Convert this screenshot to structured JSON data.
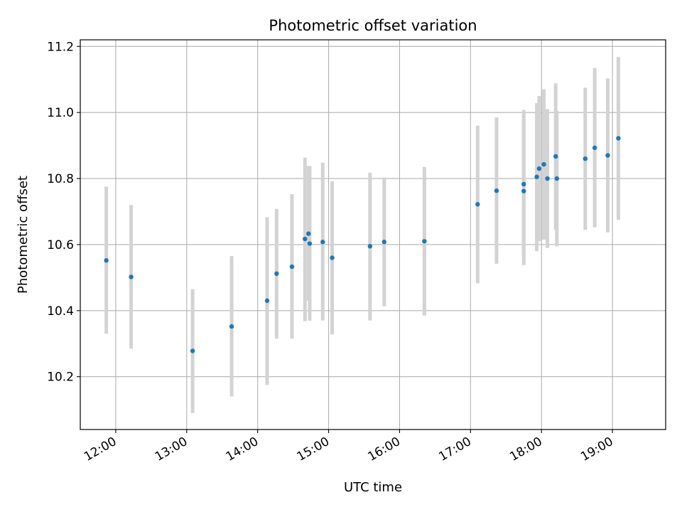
{
  "chart_data": {
    "type": "scatter",
    "title": "Photometric offset variation",
    "xlabel": "UTC time",
    "ylabel": "Photometric offset",
    "x_unit": "time of day (HH:MM, UTC)",
    "xlim": [
      "11:30",
      "19:45"
    ],
    "ylim": [
      10.04,
      11.22
    ],
    "x_ticks": [
      "12:00",
      "13:00",
      "14:00",
      "15:00",
      "16:00",
      "17:00",
      "18:00",
      "19:00"
    ],
    "y_ticks": [
      10.2,
      10.4,
      10.6,
      10.8,
      11.0,
      11.2
    ],
    "y_tick_labels": [
      "10.2",
      "10.4",
      "10.6",
      "10.8",
      "11.0",
      "11.2"
    ],
    "grid": true,
    "colors": {
      "point": "#1f77b4",
      "errorbar": "#d3d3d3",
      "grid": "#b0b0b0"
    },
    "points": [
      {
        "t": "11:52",
        "y": 10.552,
        "lo": 10.33,
        "hi": 10.775
      },
      {
        "t": "12:13",
        "y": 10.502,
        "lo": 10.285,
        "hi": 10.72
      },
      {
        "t": "13:05",
        "y": 10.278,
        "lo": 10.09,
        "hi": 10.465
      },
      {
        "t": "13:38",
        "y": 10.352,
        "lo": 10.14,
        "hi": 10.565
      },
      {
        "t": "14:08",
        "y": 10.43,
        "lo": 10.175,
        "hi": 10.683
      },
      {
        "t": "14:16",
        "y": 10.512,
        "lo": 10.315,
        "hi": 10.708
      },
      {
        "t": "14:29",
        "y": 10.533,
        "lo": 10.315,
        "hi": 10.753
      },
      {
        "t": "14:40",
        "y": 10.617,
        "lo": 10.368,
        "hi": 10.863
      },
      {
        "t": "14:43",
        "y": 10.633,
        "lo": 10.43,
        "hi": 10.838
      },
      {
        "t": "14:44",
        "y": 10.603,
        "lo": 10.37,
        "hi": 10.838
      },
      {
        "t": "14:55",
        "y": 10.608,
        "lo": 10.37,
        "hi": 10.848
      },
      {
        "t": "15:03",
        "y": 10.56,
        "lo": 10.328,
        "hi": 10.792
      },
      {
        "t": "15:35",
        "y": 10.595,
        "lo": 10.37,
        "hi": 10.818
      },
      {
        "t": "15:47",
        "y": 10.608,
        "lo": 10.413,
        "hi": 10.803
      },
      {
        "t": "16:21",
        "y": 10.61,
        "lo": 10.385,
        "hi": 10.835
      },
      {
        "t": "17:06",
        "y": 10.722,
        "lo": 10.483,
        "hi": 10.96
      },
      {
        "t": "17:22",
        "y": 10.763,
        "lo": 10.542,
        "hi": 10.985
      },
      {
        "t": "17:45",
        "y": 10.762,
        "lo": 10.538,
        "hi": 10.985
      },
      {
        "t": "17:45",
        "y": 10.783,
        "lo": 10.56,
        "hi": 11.008
      },
      {
        "t": "17:56",
        "y": 10.805,
        "lo": 10.58,
        "hi": 11.028
      },
      {
        "t": "17:58",
        "y": 10.83,
        "lo": 10.61,
        "hi": 11.05
      },
      {
        "t": "18:02",
        "y": 10.843,
        "lo": 10.615,
        "hi": 11.07
      },
      {
        "t": "18:05",
        "y": 10.8,
        "lo": 10.59,
        "hi": 11.01
      },
      {
        "t": "18:12",
        "y": 10.867,
        "lo": 10.645,
        "hi": 11.088
      },
      {
        "t": "18:13",
        "y": 10.8,
        "lo": 10.595,
        "hi": 11.005
      },
      {
        "t": "18:37",
        "y": 10.86,
        "lo": 10.645,
        "hi": 11.075
      },
      {
        "t": "18:45",
        "y": 10.893,
        "lo": 10.652,
        "hi": 11.135
      },
      {
        "t": "18:56",
        "y": 10.87,
        "lo": 10.637,
        "hi": 11.103
      },
      {
        "t": "19:05",
        "y": 10.922,
        "lo": 10.675,
        "hi": 11.168
      }
    ]
  }
}
